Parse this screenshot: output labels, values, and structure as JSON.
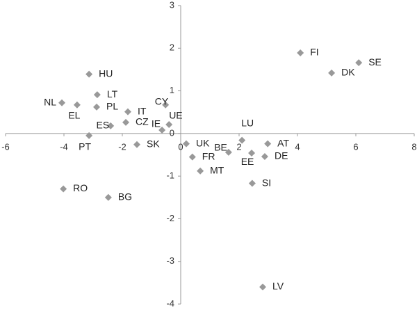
{
  "chart_data": {
    "type": "scatter",
    "labels": [
      "FI",
      "SE",
      "DK",
      "HU",
      "LT",
      "NL",
      "EL",
      "PL",
      "IT",
      "CY",
      "CZ",
      "ES",
      "UE",
      "IE",
      "PT",
      "SK",
      "UK",
      "LU",
      "AT",
      "BE",
      "EE",
      "DE",
      "FR",
      "MT",
      "SI",
      "RO",
      "BG",
      "LV"
    ],
    "x": [
      4.1,
      6.1,
      5.17,
      -3.14,
      -2.86,
      -4.07,
      -3.55,
      -2.88,
      -1.81,
      -0.52,
      -1.88,
      -2.4,
      -0.4,
      -0.64,
      -3.14,
      -1.5,
      0.19,
      2.1,
      2.98,
      1.64,
      2.43,
      2.88,
      0.4,
      0.67,
      2.45,
      -4.02,
      -2.48,
      2.81
    ],
    "values": [
      1.89,
      1.66,
      1.42,
      1.39,
      0.91,
      0.72,
      0.67,
      0.62,
      0.51,
      0.67,
      0.26,
      0.18,
      0.21,
      0.08,
      -0.05,
      -0.26,
      -0.24,
      -0.16,
      -0.24,
      -0.44,
      -0.46,
      -0.54,
      -0.55,
      -0.88,
      -1.17,
      -1.3,
      -1.5,
      -3.6
    ],
    "color": "#999999",
    "xlim": [
      -6,
      8
    ],
    "xticks": [
      -6,
      -4,
      -2,
      0,
      2,
      4,
      6,
      8
    ],
    "ylim": [
      -4,
      3
    ],
    "yticks": [
      -4,
      -3,
      -2,
      -1,
      0,
      1,
      2,
      3
    ]
  }
}
